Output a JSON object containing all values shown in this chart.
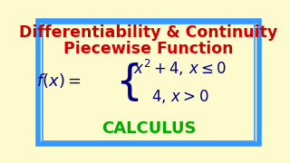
{
  "title_line1": "Differentiability & Continuity",
  "title_line2": "Piecewise Function",
  "calculus_text": "CALCULUS",
  "bg_color": "#FDFACD",
  "border_color_outer": "#3399FF",
  "border_color_inner": "#3399FF",
  "title_color": "#CC0000",
  "formula_color": "#000080",
  "calculus_color": "#00AA00",
  "title_fontsize": 12.5,
  "formula_fontsize": 12,
  "calculus_fontsize": 13
}
